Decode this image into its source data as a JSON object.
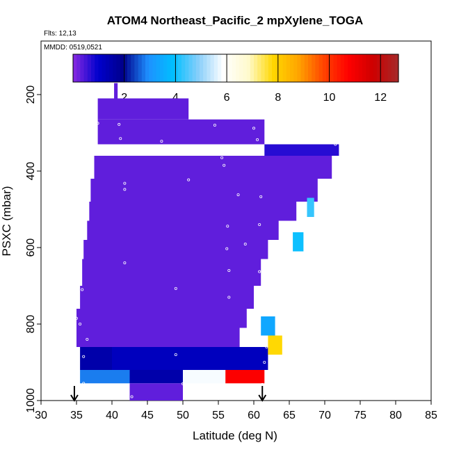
{
  "header": {
    "title": "ATOM4 Northeast_Pacific_2 mpXylene_TOGA",
    "flights": "Flts: 12,13",
    "dates": "MMDD: 0519,0521"
  },
  "colors": {
    "background": "#ffffff",
    "frame": "#000000",
    "low": "#8a2be2",
    "high": "#a52a2a",
    "marker": "#ffffff"
  },
  "chart_data": {
    "type": "heatmap",
    "title": "ATOM4 Northeast_Pacific_2 mpXylene_TOGA",
    "xlabel": "Latitude (deg N)",
    "ylabel": "PSXC (mbar)",
    "xlim": [
      30,
      85
    ],
    "ylim": [
      1000,
      60
    ],
    "y_inverted": true,
    "xticks": [
      30,
      35,
      40,
      45,
      50,
      55,
      60,
      65,
      70,
      75,
      80,
      85
    ],
    "yticks": [
      200,
      400,
      600,
      800,
      1000
    ],
    "colorbar": {
      "range": [
        0.0,
        12.7
      ],
      "ticks": [
        2,
        4,
        6,
        8,
        10,
        12
      ],
      "colors": [
        "#8a2be2",
        "#0000cd",
        "#00008b",
        "#1e90ff",
        "#00bfff",
        "#87cefa",
        "#ffffff",
        "#fffacd",
        "#ffd700",
        "#ffa500",
        "#ff4500",
        "#ff0000",
        "#cd0000",
        "#a52a2a"
      ]
    },
    "cells": [
      {
        "lat": [
          40.3,
          40.8
        ],
        "p": [
          170,
          210
        ],
        "value": 0.3
      },
      {
        "lat": [
          38.0,
          50.8
        ],
        "p": [
          210,
          265
        ],
        "value": 0.3
      },
      {
        "lat": [
          38.0,
          61.5
        ],
        "p": [
          265,
          330
        ],
        "value": 0.3
      },
      {
        "lat": [
          61.5,
          72.0
        ],
        "p": [
          330,
          360
        ],
        "value": 0.7
      },
      {
        "lat": [
          37.5,
          71.0
        ],
        "p": [
          360,
          420
        ],
        "value": 0.3
      },
      {
        "lat": [
          37.0,
          69.0
        ],
        "p": [
          420,
          480
        ],
        "value": 0.3
      },
      {
        "lat": [
          36.8,
          66.0
        ],
        "p": [
          480,
          530
        ],
        "value": 0.3
      },
      {
        "lat": [
          36.5,
          63.5
        ],
        "p": [
          530,
          580
        ],
        "value": 0.3
      },
      {
        "lat": [
          36.0,
          62.0
        ],
        "p": [
          580,
          630
        ],
        "value": 0.3
      },
      {
        "lat": [
          35.8,
          61.0
        ],
        "p": [
          630,
          700
        ],
        "value": 0.3
      },
      {
        "lat": [
          35.5,
          60.0
        ],
        "p": [
          700,
          760
        ],
        "value": 0.3
      },
      {
        "lat": [
          35.0,
          59.0
        ],
        "p": [
          760,
          810
        ],
        "value": 0.3
      },
      {
        "lat": [
          35.0,
          58.0
        ],
        "p": [
          810,
          860
        ],
        "value": 0.3
      },
      {
        "lat": [
          35.5,
          40.0
        ],
        "p": [
          860,
          920
        ],
        "value": 1.5
      },
      {
        "lat": [
          40.0,
          62.0
        ],
        "p": [
          860,
          920
        ],
        "value": 1.2
      },
      {
        "lat": [
          35.5,
          42.5
        ],
        "p": [
          920,
          955
        ],
        "value": 2.8
      },
      {
        "lat": [
          42.5,
          50.0
        ],
        "p": [
          920,
          955
        ],
        "value": 1.5
      },
      {
        "lat": [
          42.5,
          50.0
        ],
        "p": [
          955,
          1000
        ],
        "value": 0.3
      },
      {
        "lat": [
          50.0,
          56.0
        ],
        "p": [
          920,
          955
        ],
        "value": 5.8
      },
      {
        "lat": [
          56.0,
          61.5
        ],
        "p": [
          920,
          955
        ],
        "value": 10.8
      },
      {
        "lat": [
          61.0,
          63.0
        ],
        "p": [
          780,
          830
        ],
        "value": 3.4
      },
      {
        "lat": [
          62.0,
          64.0
        ],
        "p": [
          830,
          880
        ],
        "value": 7.8
      },
      {
        "lat": [
          65.5,
          67.0
        ],
        "p": [
          560,
          610
        ],
        "value": 4.0
      },
      {
        "lat": [
          67.5,
          68.5
        ],
        "p": [
          470,
          520
        ],
        "value": 4.3
      }
    ],
    "samples": [
      {
        "lat": 38.0,
        "p": 275
      },
      {
        "lat": 41.0,
        "p": 278
      },
      {
        "lat": 54.5,
        "p": 280
      },
      {
        "lat": 60.0,
        "p": 288
      },
      {
        "lat": 41.2,
        "p": 315
      },
      {
        "lat": 47.0,
        "p": 322
      },
      {
        "lat": 60.5,
        "p": 318
      },
      {
        "lat": 61.0,
        "p": 352
      },
      {
        "lat": 71.5,
        "p": 330
      },
      {
        "lat": 55.5,
        "p": 365
      },
      {
        "lat": 55.8,
        "p": 385
      },
      {
        "lat": 50.8,
        "p": 423
      },
      {
        "lat": 41.8,
        "p": 432
      },
      {
        "lat": 41.8,
        "p": 448
      },
      {
        "lat": 57.8,
        "p": 462
      },
      {
        "lat": 61.0,
        "p": 467
      },
      {
        "lat": 56.3,
        "p": 544
      },
      {
        "lat": 60.8,
        "p": 540
      },
      {
        "lat": 58.8,
        "p": 591
      },
      {
        "lat": 56.2,
        "p": 603
      },
      {
        "lat": 41.8,
        "p": 640
      },
      {
        "lat": 56.5,
        "p": 660
      },
      {
        "lat": 60.8,
        "p": 663
      },
      {
        "lat": 49.0,
        "p": 707
      },
      {
        "lat": 35.3,
        "p": 700
      },
      {
        "lat": 35.8,
        "p": 710
      },
      {
        "lat": 56.5,
        "p": 730
      },
      {
        "lat": 35.0,
        "p": 785
      },
      {
        "lat": 35.5,
        "p": 800
      },
      {
        "lat": 36.5,
        "p": 840
      },
      {
        "lat": 61.3,
        "p": 836
      },
      {
        "lat": 61.8,
        "p": 860
      },
      {
        "lat": 49.0,
        "p": 880
      },
      {
        "lat": 36.0,
        "p": 885
      },
      {
        "lat": 61.5,
        "p": 900
      },
      {
        "lat": 36.0,
        "p": 955
      },
      {
        "lat": 50.0,
        "p": 956
      },
      {
        "lat": 61.2,
        "p": 958
      },
      {
        "lat": 42.8,
        "p": 990
      }
    ],
    "arrows_lat": [
      34.7,
      61.2
    ]
  },
  "axes": {
    "xlabel": "Latitude (deg N)",
    "ylabel": "PSXC (mbar)"
  }
}
